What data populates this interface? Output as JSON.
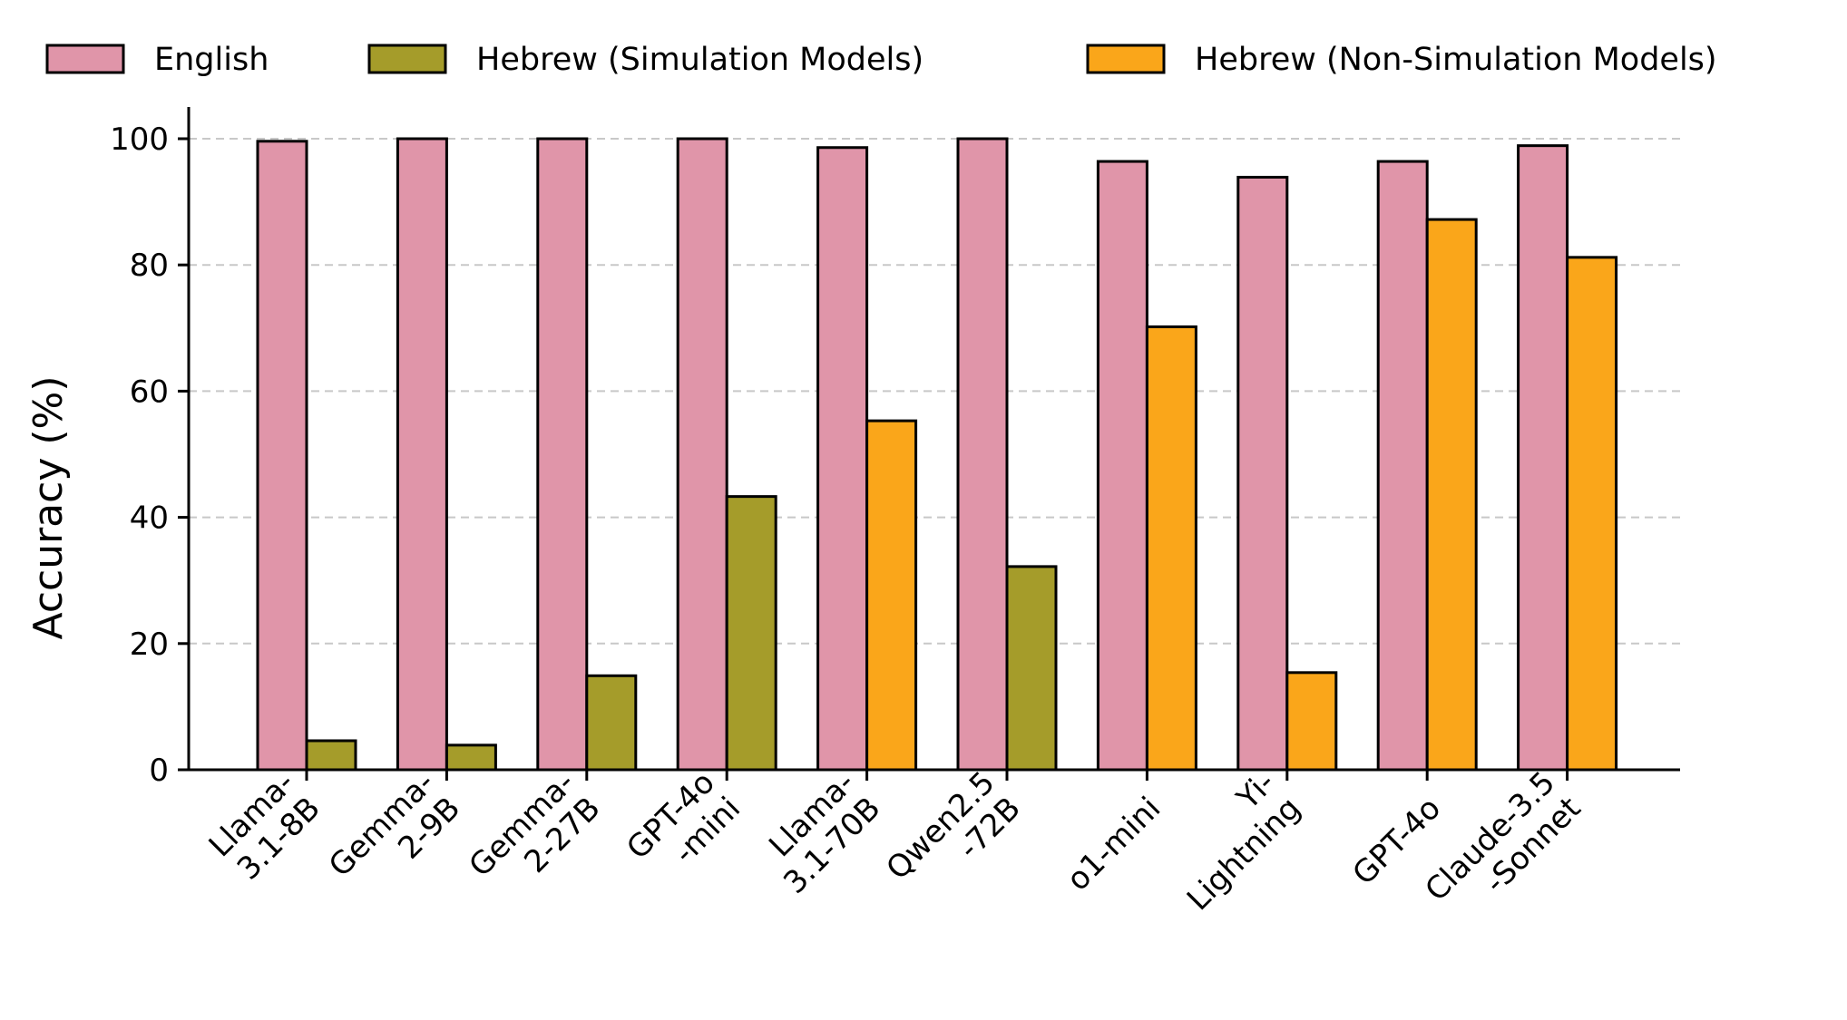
{
  "chart_data": {
    "type": "bar",
    "categories": [
      [
        "Llama-",
        "3.1-8B"
      ],
      [
        "Gemma-",
        "2-9B"
      ],
      [
        "Gemma-",
        "2-27B"
      ],
      [
        "GPT-4o",
        "-mini"
      ],
      [
        "Llama-",
        "3.1-70B"
      ],
      [
        "Qwen2.5",
        "-72B"
      ],
      [
        "o1-mini"
      ],
      [
        "Yi-",
        "Lightning"
      ],
      [
        "GPT-4o"
      ],
      [
        "Claude-3.5",
        "-Sonnet"
      ]
    ],
    "ylabel": "Accuracy (%)",
    "ylim": [
      0,
      105
    ],
    "yticks": [
      0,
      20,
      40,
      60,
      80,
      100
    ],
    "grid": true,
    "legend_position": "top",
    "legend": [
      {
        "label": "English",
        "color": "#E095A9"
      },
      {
        "label": "Hebrew (Simulation Models)",
        "color": "#A59C2A"
      },
      {
        "label": "Hebrew (Non-Simulation Models)",
        "color": "#FAA61A"
      }
    ],
    "english": [
      99.6,
      100,
      100,
      100,
      98.6,
      100,
      96.4,
      93.9,
      96.4,
      98.9
    ],
    "hebrew": [
      4.6,
      3.9,
      14.9,
      43.3,
      55.3,
      32.2,
      70.2,
      15.4,
      87.2,
      81.2
    ],
    "hebrew_type": [
      "simulation",
      "simulation",
      "simulation",
      "simulation",
      "non-simulation",
      "simulation",
      "non-simulation",
      "non-simulation",
      "non-simulation",
      "non-simulation"
    ],
    "colors": {
      "english": "#E095A9",
      "simulation": "#A59C2A",
      "non-simulation": "#FAA61A",
      "grid": "#c8c8c8",
      "edge": "#000000"
    }
  }
}
